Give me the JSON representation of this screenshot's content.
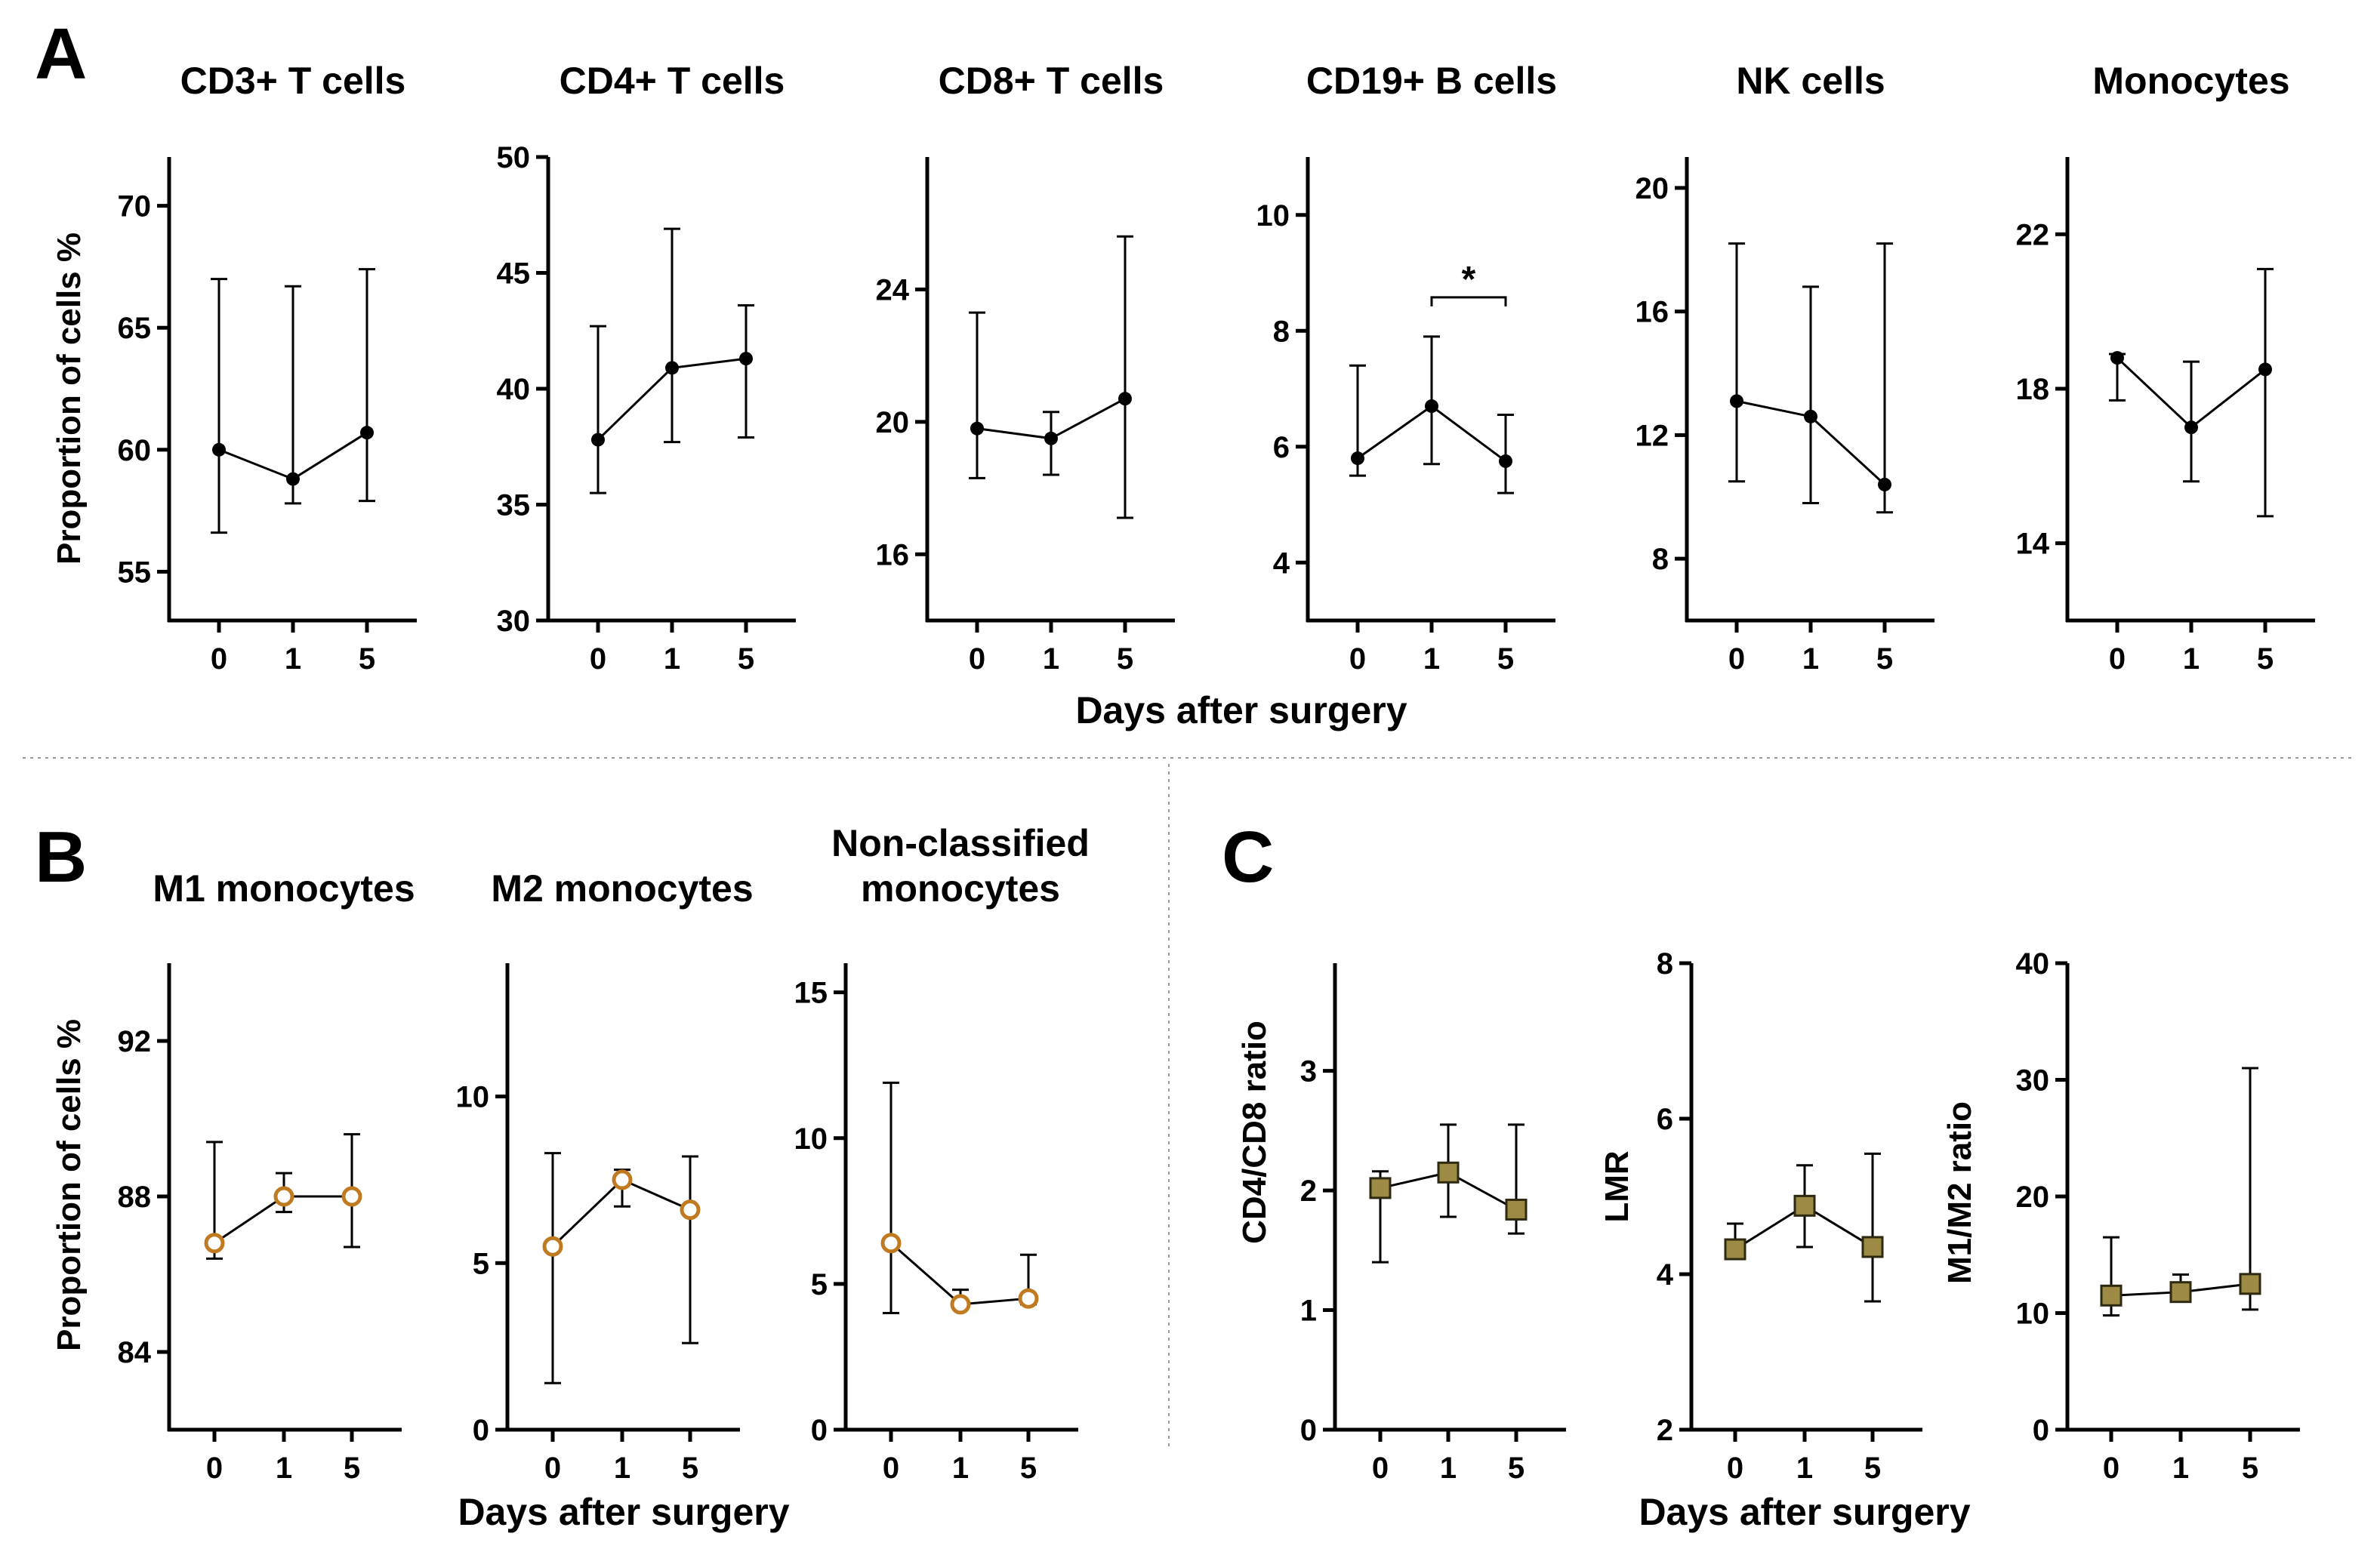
{
  "labels": {
    "panel_A": "A",
    "panel_B": "B",
    "panel_C": "C",
    "xlabel_A": "Days after surgery",
    "xlabel_B": "Days after surgery",
    "xlabel_C": "Days after surgery",
    "ylabel_A": "Proportion of cells %",
    "ylabel_B": "Proportion of cells %",
    "ylabel_C1": "CD4/CD8 ratio",
    "ylabel_C2": "LMR",
    "ylabel_C3": "M1/M2 ratio"
  },
  "colors": {
    "black": "#000000",
    "orange": "#C07A20",
    "olive_fill": "#9C8A45",
    "olive_stroke": "#2E2A12"
  },
  "chart_data": [
    {
      "id": "cd3",
      "type": "line",
      "title": "CD3+ T cells",
      "categories": [
        "0",
        "1",
        "5"
      ],
      "values": [
        60.0,
        58.8,
        60.7
      ],
      "err_low": [
        56.6,
        57.8,
        57.9
      ],
      "err_high": [
        67.0,
        66.7,
        67.4
      ],
      "ylim": [
        53,
        72
      ],
      "yticks": [
        "55",
        "60",
        "65",
        "70"
      ],
      "marker": "circle-filled"
    },
    {
      "id": "cd4",
      "type": "line",
      "title": "CD4+ T cells",
      "categories": [
        "0",
        "1",
        "5"
      ],
      "values": [
        37.8,
        40.9,
        41.3
      ],
      "err_low": [
        35.5,
        37.7,
        37.9
      ],
      "err_high": [
        42.7,
        46.9,
        43.6
      ],
      "ylim": [
        30,
        50
      ],
      "yticks": [
        "30",
        "35",
        "40",
        "45",
        "50"
      ],
      "marker": "circle-filled"
    },
    {
      "id": "cd8",
      "type": "line",
      "title": "CD8+ T cells",
      "categories": [
        "0",
        "1",
        "5"
      ],
      "values": [
        19.8,
        19.5,
        20.7
      ],
      "err_low": [
        18.3,
        18.4,
        17.1
      ],
      "err_high": [
        23.3,
        20.3,
        25.6
      ],
      "ylim": [
        14,
        28
      ],
      "yticks": [
        "16",
        "20",
        "24"
      ],
      "marker": "circle-filled"
    },
    {
      "id": "cd19",
      "type": "line",
      "title": "CD19+ B cells",
      "categories": [
        "0",
        "1",
        "5"
      ],
      "values": [
        5.8,
        6.7,
        5.75
      ],
      "err_low": [
        5.5,
        5.7,
        5.2
      ],
      "err_high": [
        7.4,
        7.9,
        6.55
      ],
      "ylim": [
        3,
        11
      ],
      "yticks": [
        "4",
        "6",
        "8",
        "10"
      ],
      "marker": "circle-filled",
      "significance": {
        "from": 1,
        "to": 2,
        "label": "*"
      }
    },
    {
      "id": "nk",
      "type": "line",
      "title": "NK cells",
      "categories": [
        "0",
        "1",
        "5"
      ],
      "values": [
        13.1,
        12.6,
        10.4
      ],
      "err_low": [
        10.5,
        9.8,
        9.5
      ],
      "err_high": [
        18.2,
        16.8,
        18.2
      ],
      "ylim": [
        6,
        21
      ],
      "yticks": [
        "8",
        "12",
        "16",
        "20"
      ],
      "marker": "circle-filled"
    },
    {
      "id": "mono",
      "type": "line",
      "title": "Monocytes",
      "categories": [
        "0",
        "1",
        "5"
      ],
      "values": [
        18.8,
        17.0,
        18.5
      ],
      "err_low": [
        17.7,
        15.6,
        14.7
      ],
      "err_high": [
        18.9,
        18.7,
        21.1
      ],
      "ylim": [
        12,
        24
      ],
      "yticks": [
        "14",
        "18",
        "22"
      ],
      "marker": "circle-filled"
    },
    {
      "id": "m1",
      "type": "line",
      "title": [
        "M1 monocytes"
      ],
      "categories": [
        "0",
        "1",
        "5"
      ],
      "values": [
        86.8,
        88.0,
        88.0
      ],
      "err_low": [
        86.4,
        87.6,
        86.7
      ],
      "err_high": [
        89.4,
        88.6,
        89.6
      ],
      "ylim": [
        82,
        94
      ],
      "yticks": [
        "84",
        "88",
        "92"
      ],
      "marker": "circle-open"
    },
    {
      "id": "m2",
      "type": "line",
      "title": [
        "M2 monocytes"
      ],
      "categories": [
        "0",
        "1",
        "5"
      ],
      "values": [
        5.5,
        7.5,
        6.6
      ],
      "err_low": [
        1.4,
        6.7,
        2.6
      ],
      "err_high": [
        8.3,
        7.8,
        8.2
      ],
      "ylim": [
        0,
        14
      ],
      "yticks": [
        "0",
        "5",
        "10"
      ],
      "marker": "circle-open"
    },
    {
      "id": "ncm",
      "type": "line",
      "title": [
        "Non-classified",
        "monocytes"
      ],
      "categories": [
        "0",
        "1",
        "5"
      ],
      "values": [
        6.4,
        4.3,
        4.5
      ],
      "err_low": [
        4.0,
        4.2,
        4.3
      ],
      "err_high": [
        11.9,
        4.8,
        6.0
      ],
      "ylim": [
        0,
        16
      ],
      "yticks": [
        "0",
        "5",
        "10",
        "15"
      ],
      "marker": "circle-open"
    },
    {
      "id": "cd4cd8",
      "type": "line",
      "title": [],
      "categories": [
        "0",
        "1",
        "5"
      ],
      "values": [
        2.02,
        2.15,
        1.84
      ],
      "err_low": [
        1.4,
        1.78,
        1.64
      ],
      "err_high": [
        2.16,
        2.55,
        2.55
      ],
      "ylim": [
        0,
        3.9
      ],
      "yticks": [
        "0",
        "1",
        "2",
        "3"
      ],
      "marker": "square"
    },
    {
      "id": "lmr",
      "type": "line",
      "title": [],
      "categories": [
        "0",
        "1",
        "5"
      ],
      "values": [
        4.32,
        4.88,
        4.35
      ],
      "err_low": [
        4.3,
        4.35,
        3.65
      ],
      "err_high": [
        4.65,
        5.4,
        5.55
      ],
      "ylim": [
        2,
        8
      ],
      "yticks": [
        "2",
        "4",
        "6",
        "8"
      ],
      "marker": "square"
    },
    {
      "id": "m1m2",
      "type": "line",
      "title": [],
      "categories": [
        "0",
        "1",
        "5"
      ],
      "values": [
        11.5,
        11.8,
        12.5
      ],
      "err_low": [
        9.8,
        11.3,
        10.3
      ],
      "err_high": [
        16.5,
        13.3,
        31.0
      ],
      "ylim": [
        0,
        40
      ],
      "yticks": [
        "0",
        "10",
        "20",
        "30",
        "40"
      ],
      "marker": "square"
    }
  ]
}
